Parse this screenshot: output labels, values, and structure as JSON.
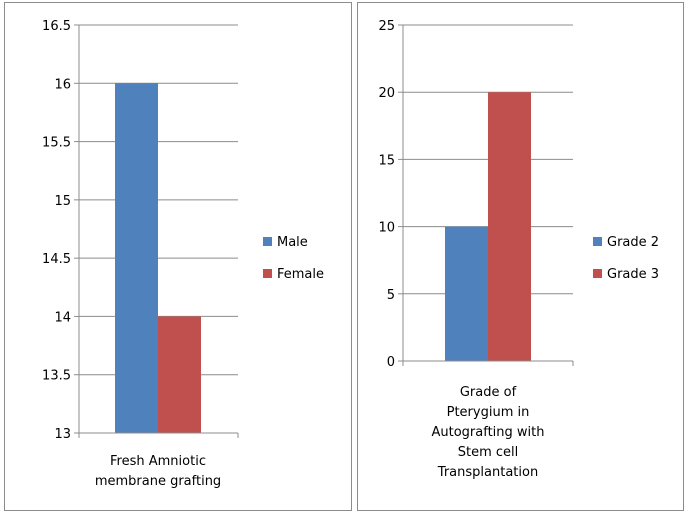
{
  "chart_data": [
    {
      "type": "bar",
      "categories": [
        "Fresh Amniotic membrane grafting"
      ],
      "category_label_lines": [
        "Fresh Amniotic",
        "membrane grafting"
      ],
      "series": [
        {
          "name": "Male",
          "values": [
            16
          ],
          "color": "#4f81bd"
        },
        {
          "name": "Female",
          "values": [
            14
          ],
          "color": "#c0504d"
        }
      ],
      "ylim": [
        13,
        16.5
      ],
      "yticks": [
        "13",
        "13.5",
        "14",
        "14.5",
        "15",
        "15.5",
        "16",
        "16.5"
      ],
      "grid": true,
      "legend_position": "right"
    },
    {
      "type": "bar",
      "categories": [
        "Grade of Pterygium in Autografting with Stem cell Transplantation"
      ],
      "category_label_lines": [
        "Grade of",
        "Pterygium in",
        "Autografting with",
        "Stem cell",
        "Transplantation"
      ],
      "series": [
        {
          "name": "Grade 2",
          "values": [
            10
          ],
          "color": "#4f81bd"
        },
        {
          "name": "Grade 3",
          "values": [
            20
          ],
          "color": "#c0504d"
        }
      ],
      "ylim": [
        0,
        25
      ],
      "yticks": [
        "0",
        "5",
        "10",
        "15",
        "20",
        "25"
      ],
      "grid": true,
      "legend_position": "right"
    }
  ]
}
